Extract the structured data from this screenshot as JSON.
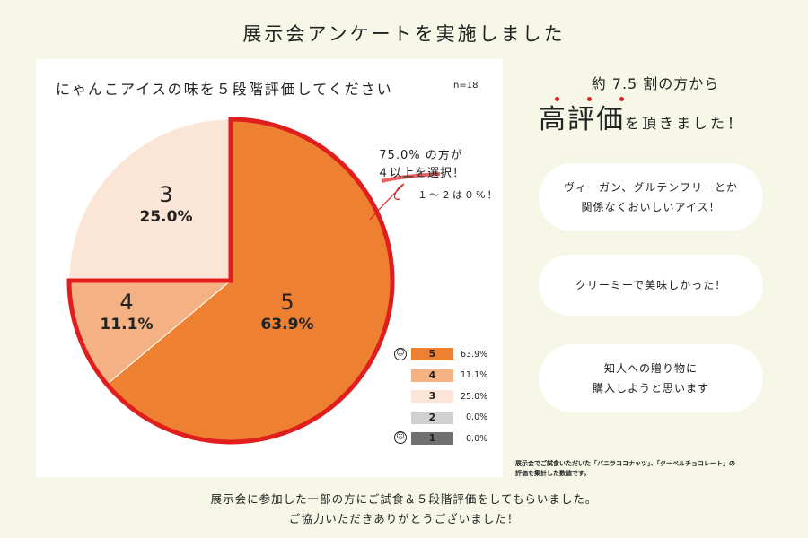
{
  "title": "展示会アンケートを実施しました",
  "chart_data": {
    "type": "pie",
    "title": "にゃんこアイスの味を５段階評価してください",
    "sample": "n=18",
    "categories": [
      "5",
      "4",
      "3",
      "2",
      "1"
    ],
    "values": [
      63.9,
      11.1,
      25.0,
      0.0,
      0.0
    ],
    "value_labels": [
      "63.9%",
      "11.1%",
      "25.0%",
      "0.0%",
      "0.0%"
    ],
    "colors": [
      "#ee8032",
      "#f4b184",
      "#fbe5d6",
      "#d0d0d0",
      "#707070"
    ],
    "highlight_color": "#e01e1e",
    "legend": "bottom-right",
    "legend_icons": {
      "top": "smile-face-icon",
      "bottom": "sad-face-icon"
    },
    "callout": [
      "75.0% の方が",
      "４以上を選択！"
    ],
    "callout_sub": "１～２は０%！"
  },
  "right": {
    "headline1": "約 7.5 割の方から",
    "headline2_big": "高評価",
    "headline2_small": "を頂きました！",
    "comments": [
      [
        "ヴィーガン、グルテンフリーとか",
        "関係なくおいしいアイス！"
      ],
      [
        "クリーミーで美味しかった！"
      ],
      [
        "知人への贈り物に",
        "購入しようと思います"
      ]
    ],
    "note": [
      "展示会でご試食いただいた「バニラココナッツ」、「クーベルチョコレート」の",
      "評価を集計した数値です。"
    ]
  },
  "footer": [
    "展示会に参加した一部の方にご試食＆５段階評価をしてもらいました。",
    "ご協力いただきありがとうございました！"
  ]
}
